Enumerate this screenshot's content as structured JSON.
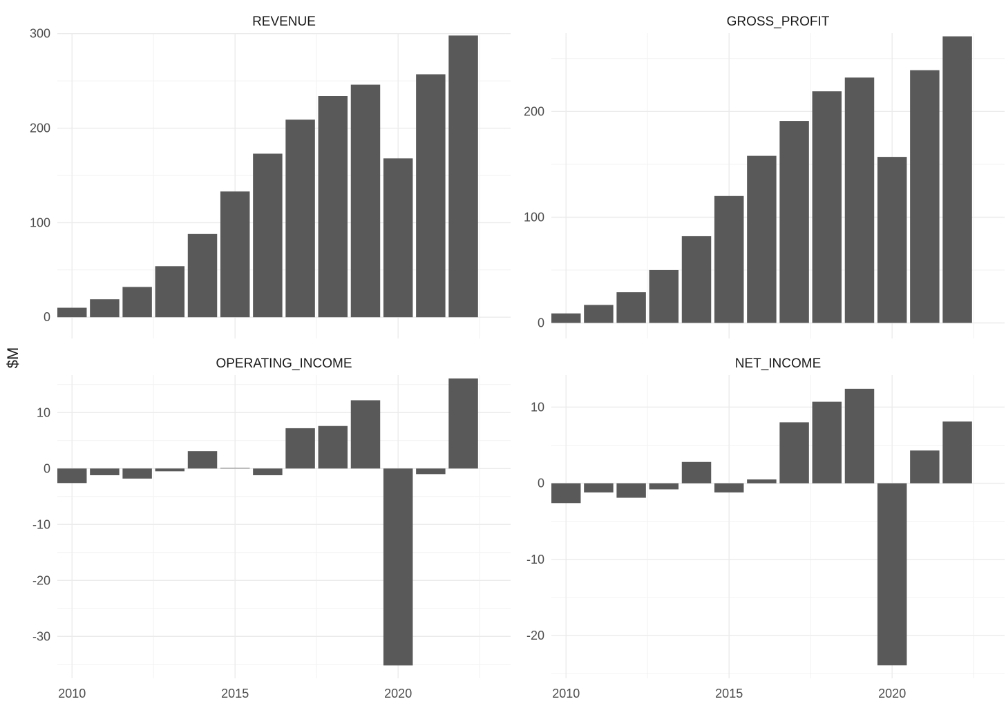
{
  "chart_data": {
    "type": "bar",
    "layout": "facet_wrap 2x2",
    "ylabel": "$M",
    "xlabel": "",
    "x_ticks": [
      2010,
      2015,
      2020
    ],
    "grid": "on",
    "colors": {
      "bar": "#595959",
      "grid": "#ebebeb",
      "background": "#ffffff"
    },
    "years": [
      2010,
      2011,
      2012,
      2013,
      2014,
      2015,
      2016,
      2017,
      2018,
      2019,
      2020,
      2021,
      2022
    ],
    "panels": [
      {
        "title": "REVENUE",
        "ylim": [
          -22.5,
          300.5
        ],
        "y_ticks": [
          0,
          100,
          200,
          300
        ],
        "values": [
          10,
          19,
          32,
          54,
          88,
          133,
          173,
          209,
          234,
          246,
          168,
          257,
          298
        ]
      },
      {
        "title": "GROSS_PROFIT",
        "ylim": [
          -14.7,
          274
        ],
        "y_ticks": [
          0,
          100,
          200
        ],
        "values": [
          9,
          17,
          29,
          50,
          82,
          120,
          158,
          191,
          219,
          232,
          157,
          239,
          271
        ]
      },
      {
        "title": "OPERATING_INCOME",
        "ylim": [
          -37.5,
          16.7
        ],
        "y_ticks": [
          10,
          0,
          -10,
          -20,
          -30
        ],
        "values": [
          -2.6,
          -1.2,
          -1.8,
          -0.5,
          3.1,
          0.1,
          -1.2,
          7.2,
          7.6,
          12.2,
          -35.2,
          -1.0,
          16.1
        ]
      },
      {
        "title": "NET_INCOME",
        "ylim": [
          -25.6,
          14.2
        ],
        "y_ticks": [
          10,
          0,
          -10,
          -20
        ],
        "values": [
          -2.6,
          -1.2,
          -1.9,
          -0.8,
          2.8,
          -1.2,
          0.5,
          8.0,
          10.7,
          12.4,
          -23.9,
          4.3,
          8.1
        ]
      }
    ]
  }
}
